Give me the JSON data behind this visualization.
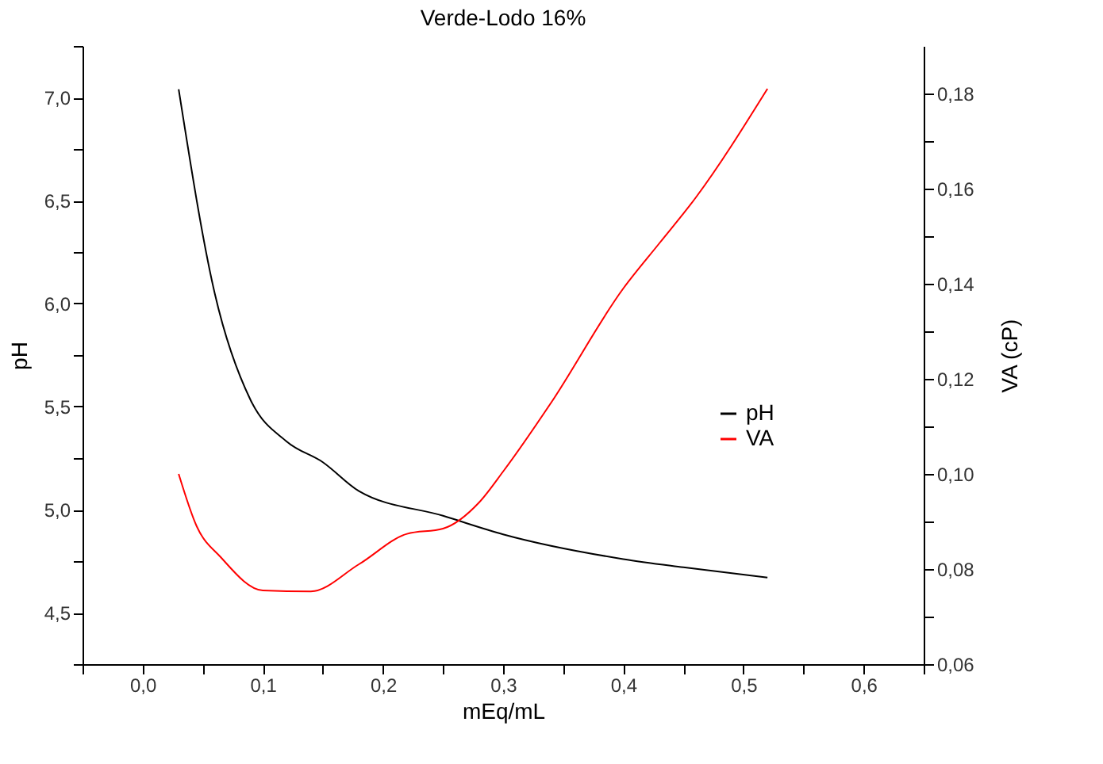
{
  "chart_data": {
    "type": "line",
    "title": "Verde-Lodo 16%",
    "xlabel": "mEq/mL",
    "ylabel": "pH",
    "y2label": "VA (cP)",
    "xlim": [
      -0.05,
      0.65
    ],
    "xticks": [
      {
        "value": -0.05,
        "label": null
      },
      {
        "value": 0,
        "label": "0,0"
      },
      {
        "value": 0.05,
        "label": null
      },
      {
        "value": 0.1,
        "label": "0,1"
      },
      {
        "value": 0.15,
        "label": null
      },
      {
        "value": 0.2,
        "label": "0,2"
      },
      {
        "value": 0.25,
        "label": null
      },
      {
        "value": 0.3,
        "label": "0,3"
      },
      {
        "value": 0.35,
        "label": null
      },
      {
        "value": 0.4,
        "label": "0,4"
      },
      {
        "value": 0.45,
        "label": null
      },
      {
        "value": 0.5,
        "label": "0,5"
      },
      {
        "value": 0.55,
        "label": null
      },
      {
        "value": 0.6,
        "label": "0,6"
      },
      {
        "value": 0.65,
        "label": null
      }
    ],
    "ylim": [
      4.25,
      7.25
    ],
    "yticks": [
      {
        "value": 4.25,
        "label": null
      },
      {
        "value": 4.5,
        "label": "4,5"
      },
      {
        "value": 4.75,
        "label": null
      },
      {
        "value": 5.0,
        "label": "5,0"
      },
      {
        "value": 5.25,
        "label": null
      },
      {
        "value": 5.5,
        "label": "5,5"
      },
      {
        "value": 5.75,
        "label": null
      },
      {
        "value": 6.0,
        "label": "6,0"
      },
      {
        "value": 6.25,
        "label": null
      },
      {
        "value": 6.5,
        "label": "6,5"
      },
      {
        "value": 6.75,
        "label": null
      },
      {
        "value": 7.0,
        "label": "7,0"
      },
      {
        "value": 7.25,
        "label": null
      }
    ],
    "y2lim": [
      0.06,
      0.19
    ],
    "y2ticks": [
      {
        "value": 0.06,
        "label": "0,06"
      },
      {
        "value": 0.07,
        "label": null
      },
      {
        "value": 0.08,
        "label": "0,08"
      },
      {
        "value": 0.09,
        "label": null
      },
      {
        "value": 0.1,
        "label": "0,10"
      },
      {
        "value": 0.11,
        "label": null
      },
      {
        "value": 0.12,
        "label": "0,12"
      },
      {
        "value": 0.13,
        "label": null
      },
      {
        "value": 0.14,
        "label": "0,14"
      },
      {
        "value": 0.15,
        "label": null
      },
      {
        "value": 0.16,
        "label": "0,16"
      },
      {
        "value": 0.17,
        "label": null
      },
      {
        "value": 0.18,
        "label": "0,18"
      }
    ],
    "grid": false,
    "legend": "right",
    "marker": "none",
    "line_style": "solid",
    "series": [
      {
        "name": "pH",
        "color": "#000000",
        "x": [
          0.03,
          0.06,
          0.09,
          0.12,
          0.15,
          0.18,
          0.25,
          0.3,
          0.4,
          0.45,
          0.52
        ],
        "values": [
          7.04,
          6.05,
          5.53,
          5.33,
          5.23,
          5.09,
          4.97,
          4.88,
          4.76,
          4.72,
          4.67
        ]
      },
      {
        "name": "VA",
        "color": "#ff0000",
        "axis": "y2",
        "x": [
          0.03,
          0.045,
          0.065,
          0.1,
          0.14,
          0.18,
          0.22,
          0.25,
          0.28,
          0.3,
          0.34,
          0.4,
          0.43,
          0.46,
          0.52
        ],
        "values": [
          0.1,
          0.089,
          0.0825,
          0.0755,
          0.0753,
          0.081,
          0.0874,
          0.0885,
          0.094,
          0.1005,
          0.115,
          0.139,
          0.1485,
          0.158,
          0.181
        ]
      }
    ]
  }
}
